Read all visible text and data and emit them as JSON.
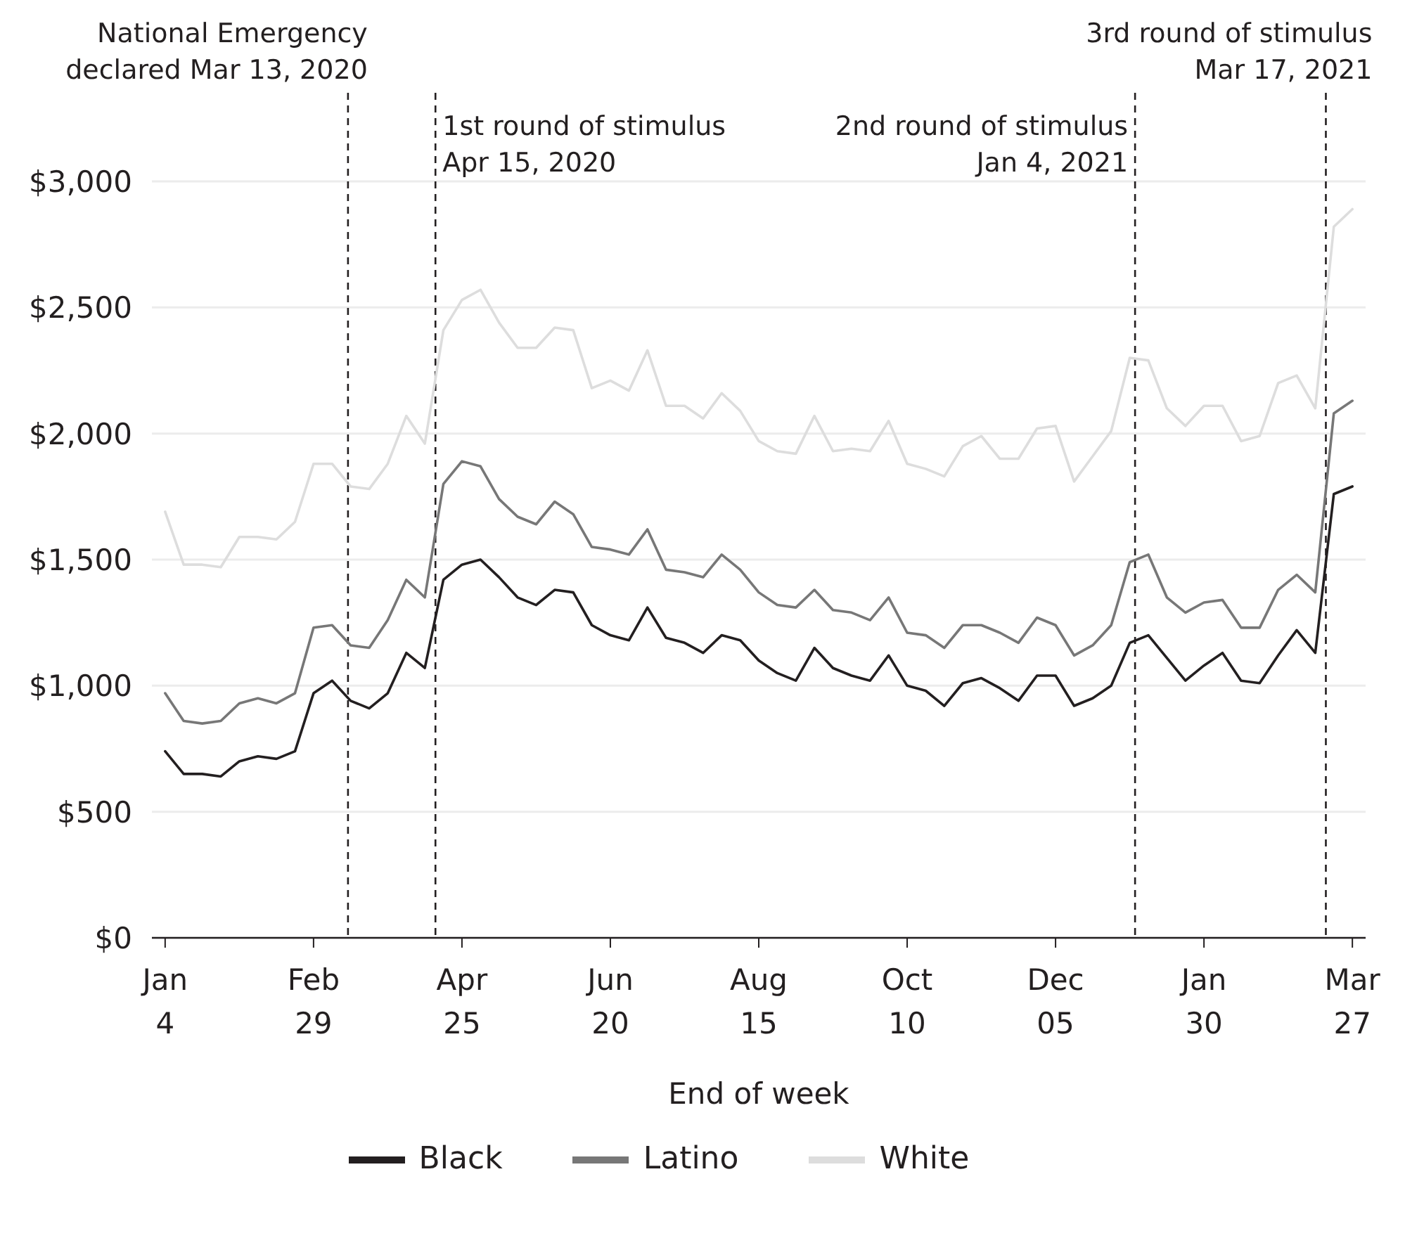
{
  "chart_data": {
    "type": "line",
    "xlabel": "End of week",
    "x": [
      "2020-01-04",
      "2020-01-11",
      "2020-01-18",
      "2020-01-25",
      "2020-02-01",
      "2020-02-08",
      "2020-02-15",
      "2020-02-22",
      "2020-02-29",
      "2020-03-07",
      "2020-03-14",
      "2020-03-21",
      "2020-03-28",
      "2020-04-04",
      "2020-04-11",
      "2020-04-18",
      "2020-04-25",
      "2020-05-02",
      "2020-05-09",
      "2020-05-16",
      "2020-05-23",
      "2020-05-30",
      "2020-06-06",
      "2020-06-13",
      "2020-06-20",
      "2020-06-27",
      "2020-07-04",
      "2020-07-11",
      "2020-07-18",
      "2020-07-25",
      "2020-08-01",
      "2020-08-08",
      "2020-08-15",
      "2020-08-22",
      "2020-08-29",
      "2020-09-05",
      "2020-09-12",
      "2020-09-19",
      "2020-09-26",
      "2020-10-03",
      "2020-10-10",
      "2020-10-17",
      "2020-10-24",
      "2020-10-31",
      "2020-11-07",
      "2020-11-14",
      "2020-11-21",
      "2020-11-28",
      "2020-12-05",
      "2020-12-12",
      "2020-12-19",
      "2020-12-26",
      "2021-01-02",
      "2021-01-09",
      "2021-01-16",
      "2021-01-23",
      "2021-01-30",
      "2021-02-06",
      "2021-02-13",
      "2021-02-20",
      "2021-02-27",
      "2021-03-06",
      "2021-03-13",
      "2021-03-20",
      "2021-03-27"
    ],
    "series": [
      {
        "name": "Black",
        "color": "#231f20",
        "values": [
          740,
          650,
          650,
          640,
          700,
          720,
          710,
          740,
          970,
          1020,
          940,
          910,
          970,
          1130,
          1070,
          1420,
          1480,
          1500,
          1430,
          1350,
          1320,
          1380,
          1370,
          1240,
          1200,
          1180,
          1310,
          1190,
          1170,
          1130,
          1200,
          1180,
          1100,
          1050,
          1020,
          1150,
          1070,
          1040,
          1020,
          1120,
          1000,
          980,
          920,
          1010,
          1030,
          990,
          940,
          1040,
          1040,
          920,
          950,
          1000,
          1170,
          1200,
          1110,
          1020,
          1080,
          1130,
          1020,
          1010,
          1120,
          1220,
          1130,
          1760,
          1790
        ]
      },
      {
        "name": "Latino",
        "color": "#777777",
        "values": [
          970,
          860,
          850,
          860,
          930,
          950,
          930,
          970,
          1230,
          1240,
          1160,
          1150,
          1260,
          1420,
          1350,
          1800,
          1890,
          1870,
          1740,
          1670,
          1640,
          1730,
          1680,
          1550,
          1540,
          1520,
          1620,
          1460,
          1450,
          1430,
          1520,
          1460,
          1370,
          1320,
          1310,
          1380,
          1300,
          1290,
          1260,
          1350,
          1210,
          1200,
          1150,
          1240,
          1240,
          1210,
          1170,
          1270,
          1240,
          1120,
          1160,
          1240,
          1490,
          1520,
          1350,
          1290,
          1330,
          1340,
          1230,
          1230,
          1380,
          1440,
          1370,
          2080,
          2130
        ]
      },
      {
        "name": "White",
        "color": "#dddddd",
        "values": [
          1690,
          1480,
          1480,
          1470,
          1590,
          1590,
          1580,
          1650,
          1880,
          1880,
          1790,
          1780,
          1880,
          2070,
          1960,
          2410,
          2530,
          2570,
          2440,
          2340,
          2340,
          2420,
          2410,
          2180,
          2210,
          2170,
          2330,
          2110,
          2110,
          2060,
          2160,
          2090,
          1970,
          1930,
          1920,
          2070,
          1930,
          1940,
          1930,
          2050,
          1880,
          1860,
          1830,
          1950,
          1990,
          1900,
          1900,
          2020,
          2030,
          1810,
          1910,
          2010,
          2300,
          2290,
          2100,
          2030,
          2110,
          2110,
          1970,
          1990,
          2200,
          2230,
          2100,
          2820,
          2890
        ]
      }
    ],
    "xlim": [
      "2019-12-30",
      "2021-04-01"
    ],
    "xticks": [
      {
        "value": "2020-01-04",
        "label": "Jan 4"
      },
      {
        "value": "2020-02-29",
        "label": "Feb 29"
      },
      {
        "value": "2020-04-25",
        "label": "Apr 25"
      },
      {
        "value": "2020-06-20",
        "label": "Jun 20"
      },
      {
        "value": "2020-08-15",
        "label": "Aug 15"
      },
      {
        "value": "2020-10-10",
        "label": "Oct 10"
      },
      {
        "value": "2020-12-05",
        "label": "Dec 05"
      },
      {
        "value": "2021-01-30",
        "label": "Jan 30"
      },
      {
        "value": "2021-03-27",
        "label": "Mar 27"
      }
    ],
    "ylim": [
      0,
      3000
    ],
    "yticks": [
      {
        "value": 0,
        "label": "$0"
      },
      {
        "value": 500,
        "label": "$500"
      },
      {
        "value": 1000,
        "label": "$1,000"
      },
      {
        "value": 1500,
        "label": "$1,500"
      },
      {
        "value": 2000,
        "label": "$2,000"
      },
      {
        "value": 2500,
        "label": "$2,500"
      },
      {
        "value": 3000,
        "label": "$3,000"
      }
    ],
    "ref_lines": [
      {
        "axis": "x",
        "value": "2020-03-13",
        "label": "National Emergency\ndeclared Mar 13, 2020",
        "line_style": "dashed",
        "color": "#231f20"
      },
      {
        "axis": "x",
        "value": "2020-04-15",
        "label": "1st round of stimulus\nApr 15, 2020",
        "line_style": "dashed",
        "color": "#231f20"
      },
      {
        "axis": "x",
        "value": "2021-01-04",
        "label": "2nd round of stimulus\nJan 4, 2021",
        "line_style": "dashed",
        "color": "#231f20"
      },
      {
        "axis": "x",
        "value": "2021-03-17",
        "label": "3rd round of stimulus\nMar 17, 2021",
        "line_style": "dashed",
        "color": "#231f20"
      }
    ],
    "grid": "y",
    "legend": "bottom",
    "marker": "none",
    "line_style": "solid"
  }
}
